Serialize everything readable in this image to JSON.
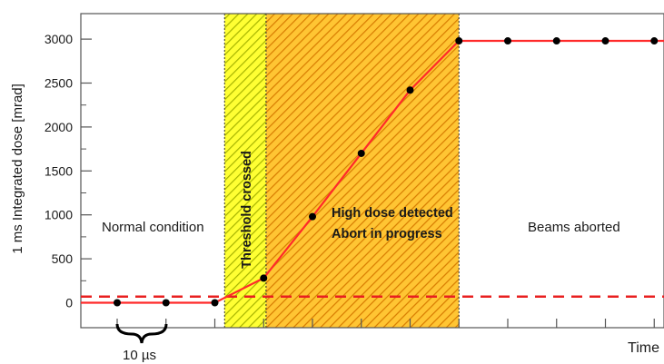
{
  "chart_data": {
    "type": "line",
    "ylabel": "1 ms Integrated dose [mrad]",
    "xlabel": "Time",
    "ylim": [
      -120,
      3250
    ],
    "yticks": [
      0,
      500,
      1000,
      1500,
      2000,
      2500,
      3000
    ],
    "n_x_ticks": 12,
    "series": [
      {
        "color": "#ff2a2a",
        "x": [
          1,
          2,
          3,
          4,
          5,
          6,
          7,
          8,
          9,
          10,
          11,
          12
        ],
        "values": [
          0,
          0,
          0,
          280,
          980,
          1700,
          2420,
          2980,
          2980,
          2980,
          2980,
          2980
        ]
      }
    ],
    "threshold": {
      "value": 70,
      "color": "#e82020",
      "style": "dashed"
    },
    "regions": [
      {
        "x0": 3.2,
        "x1": 4.05,
        "fill": "#ffff33",
        "hatch": "#a6b300",
        "label": "Threshold crossed",
        "label_style": "vertical-bold"
      },
      {
        "x0": 4.05,
        "x1": 8.0,
        "fill": "#ffc533",
        "hatch": "#d77b00",
        "label_lines": [
          "High dose detected",
          "Abort in progress"
        ],
        "label_style": "bold"
      }
    ],
    "annotations": {
      "normal": "Normal condition",
      "aborted": "Beams aborted",
      "interval": "10 µs"
    },
    "grid": false,
    "legend": "none"
  }
}
